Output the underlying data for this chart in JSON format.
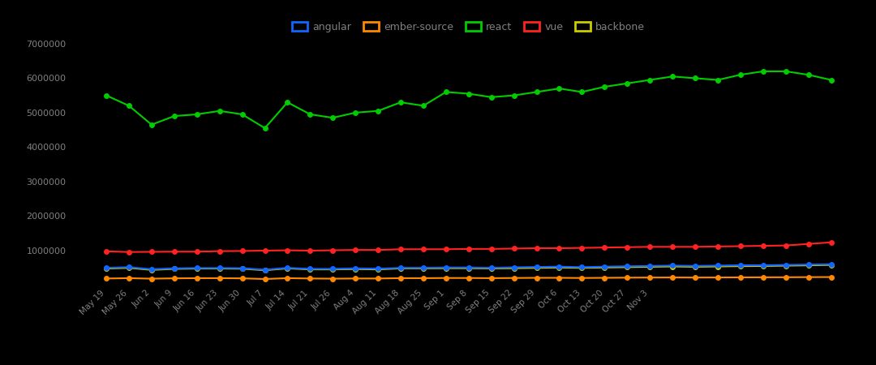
{
  "background_color": "#000000",
  "text_color": "#808080",
  "series": {
    "react": {
      "color": "#00cc00",
      "values": [
        5500000,
        5200000,
        4650000,
        4900000,
        4950000,
        5050000,
        4950000,
        4550000,
        5300000,
        4950000,
        4850000,
        5000000,
        5050000,
        5300000,
        5200000,
        5600000,
        5550000,
        5450000,
        5500000,
        5600000,
        5700000,
        5600000,
        5750000,
        5850000,
        5950000,
        6050000,
        6000000,
        5950000,
        6100000,
        6200000,
        6200000,
        6100000,
        5950000
      ]
    },
    "vue": {
      "color": "#ff2222",
      "values": [
        970000,
        950000,
        955000,
        960000,
        960000,
        975000,
        980000,
        990000,
        1000000,
        990000,
        1000000,
        1010000,
        1010000,
        1030000,
        1030000,
        1030000,
        1040000,
        1040000,
        1050000,
        1060000,
        1060000,
        1070000,
        1080000,
        1090000,
        1100000,
        1100000,
        1100000,
        1110000,
        1120000,
        1130000,
        1140000,
        1185000,
        1230000
      ]
    },
    "angular": {
      "color": "#1166ff",
      "values": [
        490000,
        510000,
        450000,
        475000,
        485000,
        485000,
        480000,
        435000,
        490000,
        460000,
        460000,
        475000,
        465000,
        490000,
        490000,
        500000,
        500000,
        490000,
        505000,
        515000,
        525000,
        510000,
        525000,
        535000,
        545000,
        555000,
        545000,
        555000,
        565000,
        565000,
        575000,
        585000,
        595000
      ]
    },
    "ember-source": {
      "color": "#ff8800",
      "values": [
        180000,
        190000,
        175000,
        185000,
        190000,
        190000,
        185000,
        165000,
        190000,
        180000,
        175000,
        180000,
        180000,
        190000,
        190000,
        195000,
        195000,
        190000,
        195000,
        200000,
        200000,
        195000,
        200000,
        205000,
        208000,
        210000,
        208000,
        210000,
        212000,
        215000,
        216000,
        220000,
        222000
      ]
    },
    "backbone": {
      "color": "#cccc00",
      "values": [
        470000,
        490000,
        430000,
        460000,
        470000,
        470000,
        465000,
        420000,
        475000,
        445000,
        445000,
        455000,
        445000,
        475000,
        475000,
        480000,
        480000,
        473000,
        480000,
        490000,
        500000,
        490000,
        500000,
        510000,
        520000,
        530000,
        520000,
        530000,
        540000,
        543000,
        553000,
        563000,
        575000
      ]
    }
  },
  "x_labels": [
    "May 19",
    "May 26",
    "Jun 2",
    "Jun 9",
    "Jun 16",
    "Jun 23",
    "Jun 30",
    "Jul 7",
    "Jul 14",
    "Jul 21",
    "Jul 26",
    "Aug 4",
    "Aug 11",
    "Aug 18",
    "Aug 25",
    "Sep 1",
    "Sep 8",
    "Sep 15",
    "Sep 22",
    "Sep 29",
    "Oct 6",
    "Oct 13",
    "Oct 20",
    "Oct 27",
    "Nov 3",
    "",
    "",
    "",
    "",
    "",
    "",
    "",
    ""
  ],
  "ylim": [
    0,
    7000000
  ],
  "yticks": [
    1000000,
    2000000,
    3000000,
    4000000,
    5000000,
    6000000,
    7000000
  ],
  "legend_order": [
    "angular",
    "ember-source",
    "react",
    "vue",
    "backbone"
  ]
}
